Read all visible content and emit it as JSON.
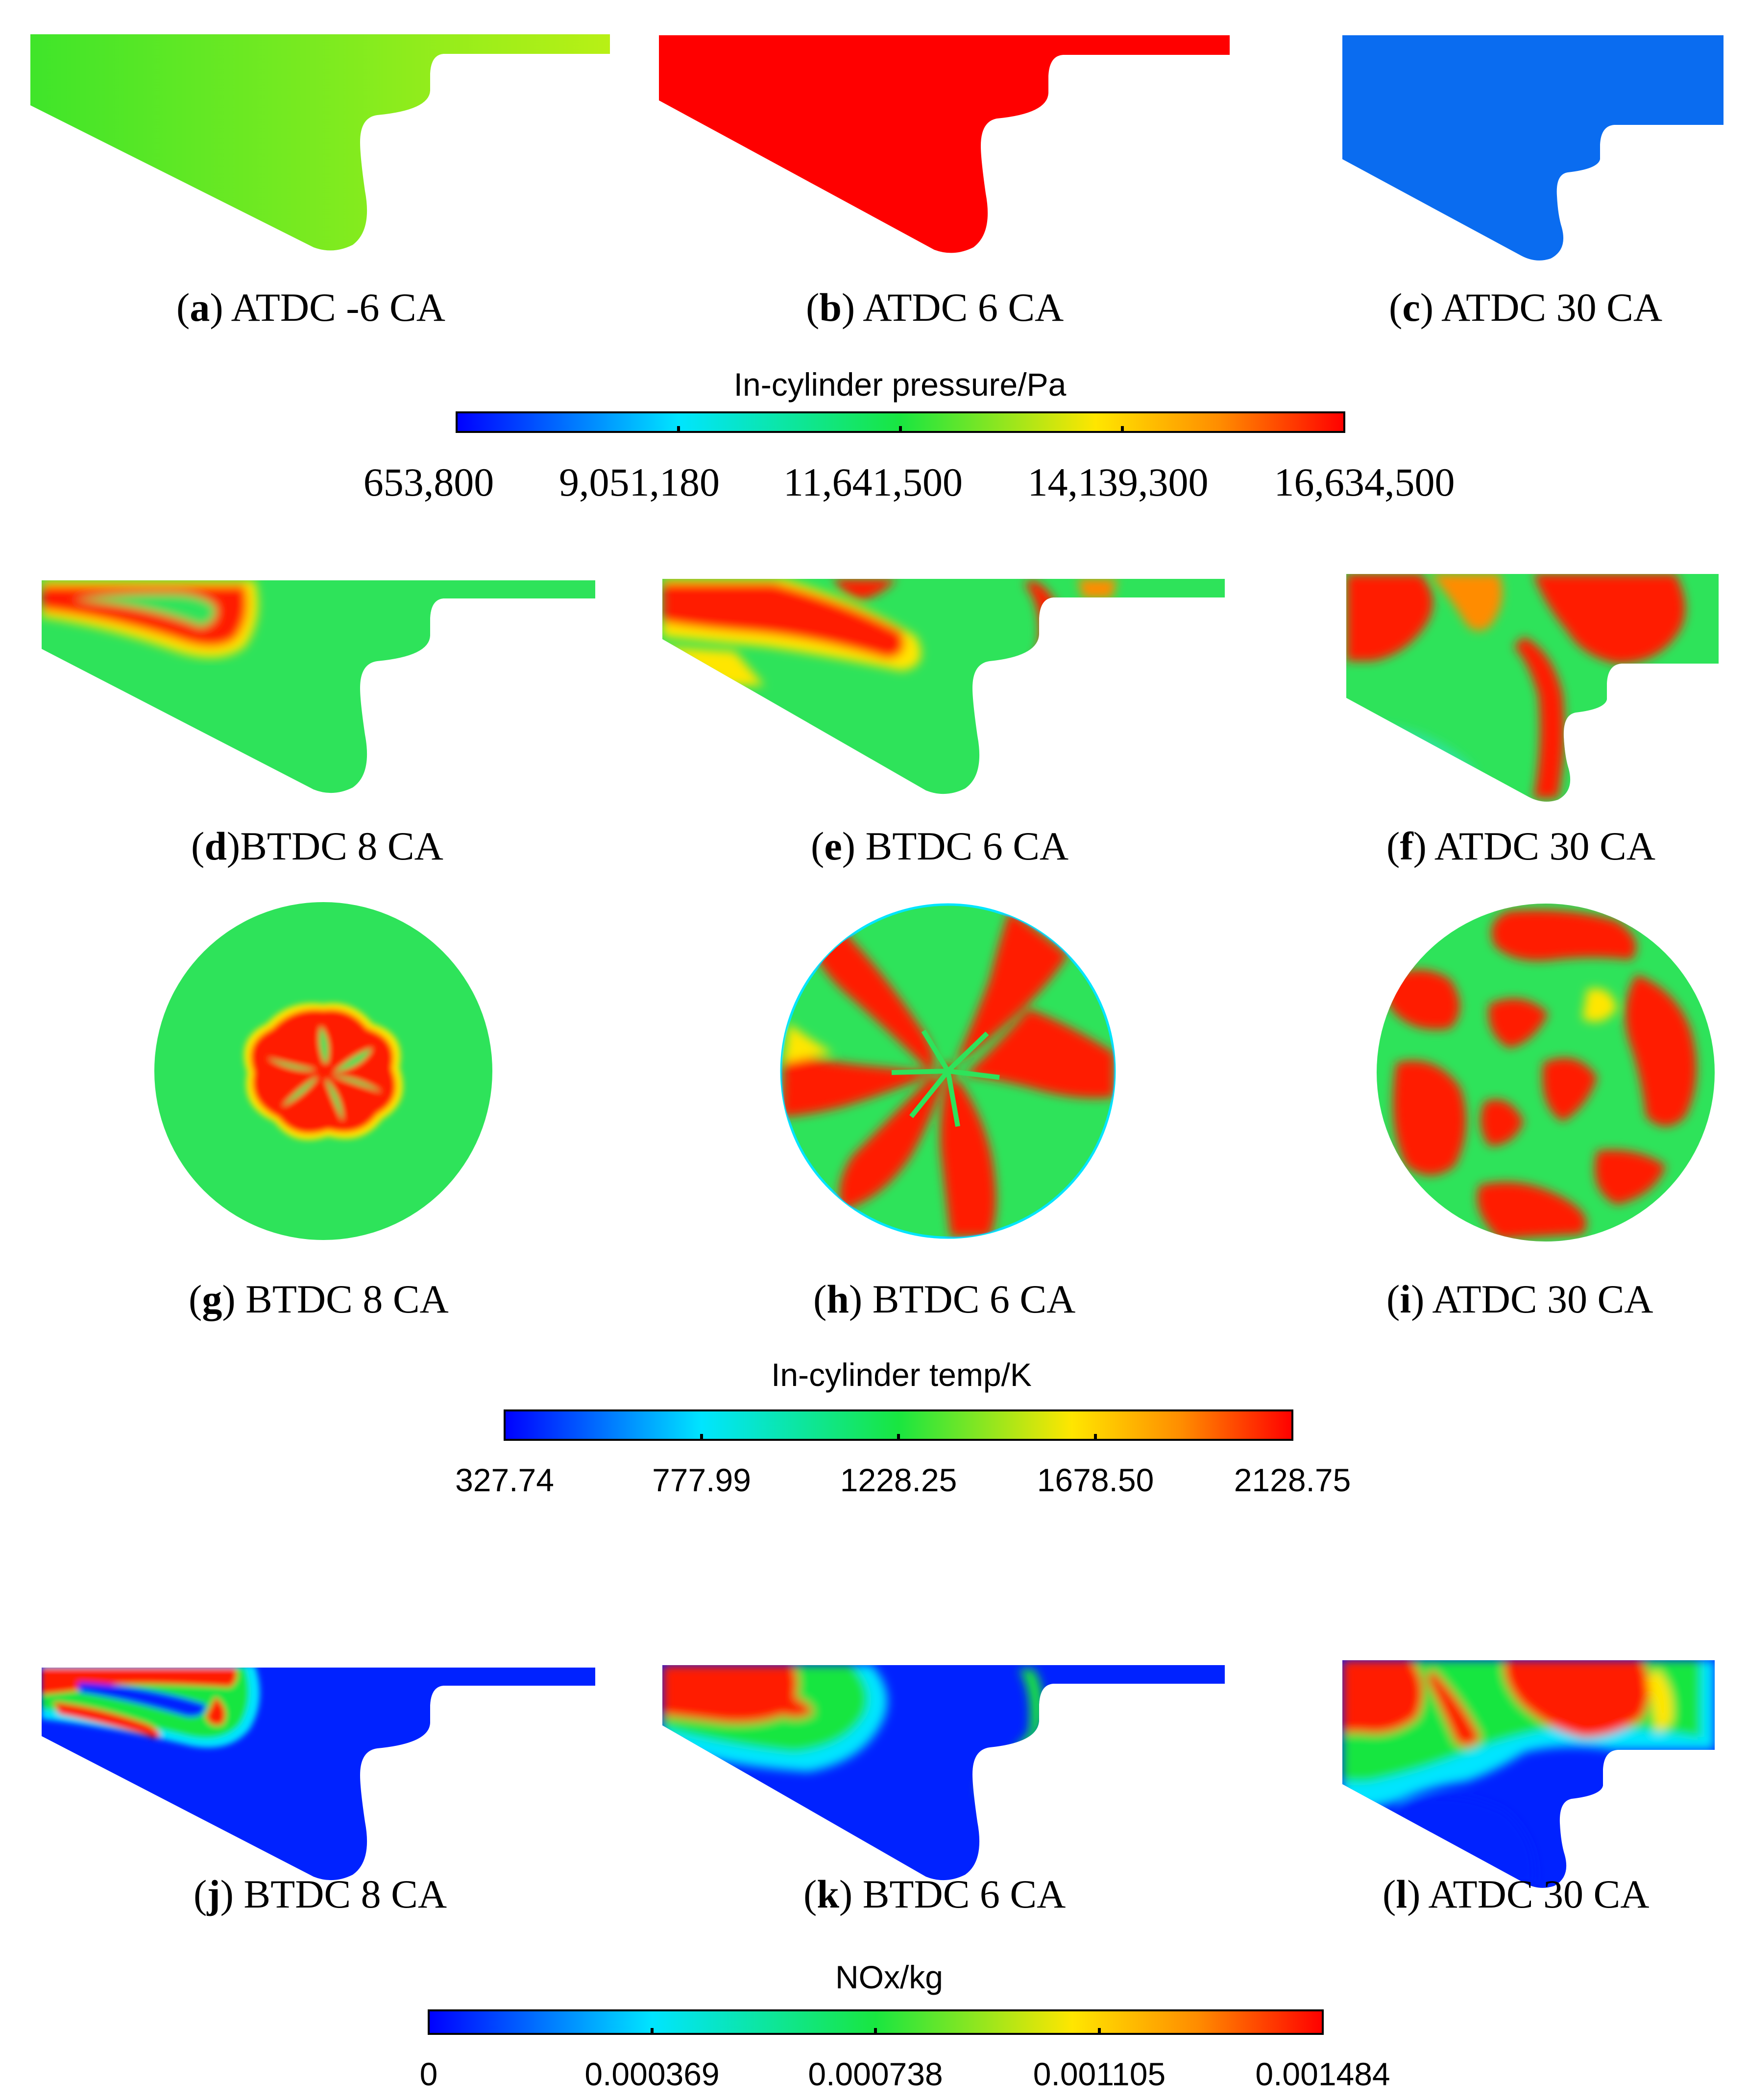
{
  "panels": [
    {
      "id": "a",
      "letter": "a",
      "rest": ") ATDC -6 CA",
      "group": "pressure"
    },
    {
      "id": "b",
      "letter": "b",
      "rest": ") ATDC 6 CA",
      "group": "pressure"
    },
    {
      "id": "c",
      "letter": "c",
      "rest": ") ATDC 30 CA",
      "group": "pressure"
    },
    {
      "id": "d",
      "letter": "d",
      "rest": ")BTDC 8 CA",
      "group": "temperature"
    },
    {
      "id": "e",
      "letter": "e",
      "rest": ") BTDC 6 CA",
      "group": "temperature"
    },
    {
      "id": "f",
      "letter": "f",
      "rest": ") ATDC 30 CA",
      "group": "temperature"
    },
    {
      "id": "g",
      "letter": "g",
      "rest": ") BTDC 8 CA",
      "group": "temperature"
    },
    {
      "id": "h",
      "letter": "h",
      "rest": ") BTDC 6 CA",
      "group": "temperature"
    },
    {
      "id": "i",
      "letter": "i",
      "rest": ") ATDC 30 CA",
      "group": "temperature"
    },
    {
      "id": "j",
      "letter": "j",
      "rest": ") BTDC 8 CA",
      "group": "nox"
    },
    {
      "id": "k",
      "letter": "k",
      "rest": ") BTDC 6 CA",
      "group": "nox"
    },
    {
      "id": "l",
      "letter": "l",
      "rest": ") ATDC 30 CA",
      "group": "nox"
    }
  ],
  "colorbars": {
    "pressure": {
      "title": "In-cylinder pressure/Pa",
      "ticks": [
        "653,800",
        "9,051,180",
        "11,641,500",
        "14,139,300",
        "16,634,500"
      ]
    },
    "temperature": {
      "title": "In-cylinder temp/K",
      "ticks": [
        "327.74",
        "777.99",
        "1228.25",
        "1678.50",
        "2128.75"
      ]
    },
    "nox": {
      "title": "NOx/kg",
      "ticks": [
        "0",
        "0.000369",
        "0.000738",
        "0.001105",
        "0.001484"
      ]
    }
  },
  "colors": {
    "blue": "#0033ff",
    "cyan": "#00e5ff",
    "green": "#19e640",
    "lime": "#9ef01a",
    "yellow": "#ffe600",
    "orange": "#ff8c00",
    "red": "#ff1a00",
    "field_pressure_a": "#7ee81c",
    "field_pressure_b": "#ff0000",
    "field_pressure_c": "#0a6cf0",
    "field_temp_bg": "#2ee35a",
    "field_temp_hot": "#ff1a00",
    "field_nox_bg": "#0022ff"
  }
}
